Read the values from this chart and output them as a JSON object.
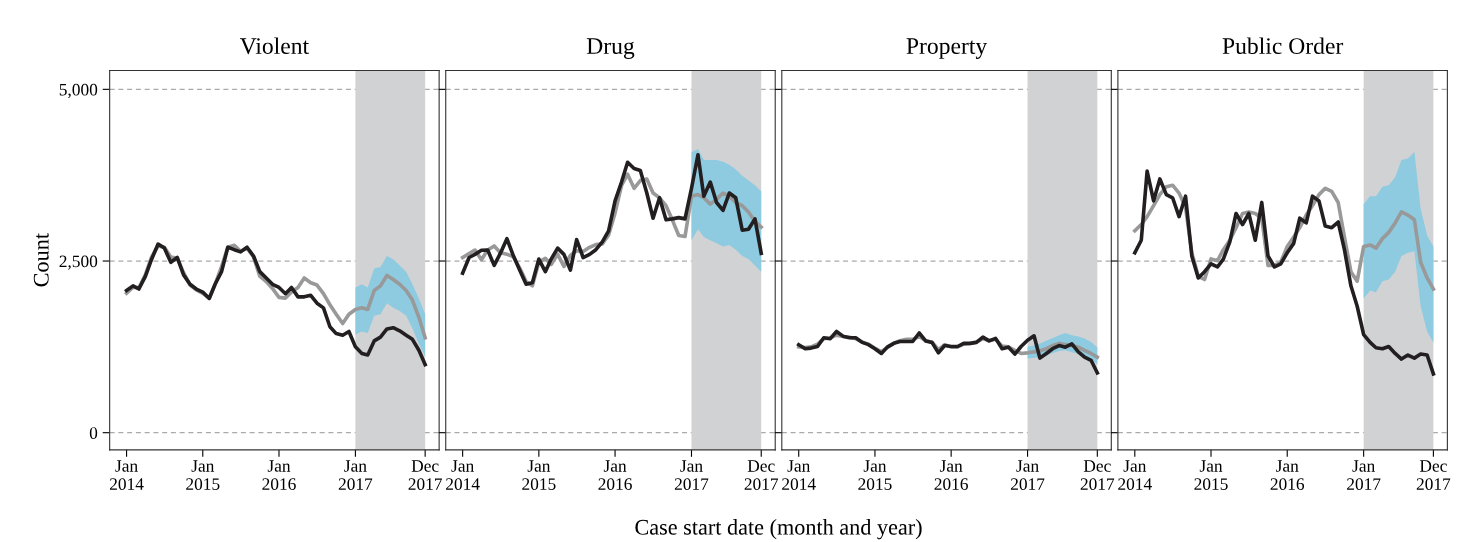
{
  "chart_data": [
    {
      "type": "line",
      "title": "Violent",
      "ylabel": "Count",
      "annotations": [
        "Case start date (month and year)"
      ],
      "x": [
        "2014-01",
        "2014-02",
        "2014-03",
        "2014-04",
        "2014-05",
        "2014-06",
        "2014-07",
        "2014-08",
        "2014-09",
        "2014-10",
        "2014-11",
        "2014-12",
        "2015-01",
        "2015-02",
        "2015-03",
        "2015-04",
        "2015-05",
        "2015-06",
        "2015-07",
        "2015-08",
        "2015-09",
        "2015-10",
        "2015-11",
        "2015-12",
        "2016-01",
        "2016-02",
        "2016-03",
        "2016-04",
        "2016-05",
        "2016-06",
        "2016-07",
        "2016-08",
        "2016-09",
        "2016-10",
        "2016-11",
        "2016-12",
        "2017-01",
        "2017-02",
        "2017-03",
        "2017-04",
        "2017-05",
        "2017-06",
        "2017-07",
        "2017-08",
        "2017-09",
        "2017-10",
        "2017-11",
        "2017-12"
      ],
      "series": [
        {
          "color": "#999999",
          "values": [
            2030,
            2120,
            2110,
            2300,
            2560,
            2720,
            2700,
            2560,
            2540,
            2330,
            2150,
            2080,
            2030,
            1960,
            2160,
            2420,
            2700,
            2730,
            2640,
            2690,
            2560,
            2280,
            2200,
            2100,
            1970,
            1960,
            2050,
            2115,
            2253,
            2184,
            2150,
            2024,
            1863,
            1726,
            1589,
            1726,
            1795,
            1818,
            1795,
            2070,
            2138,
            2290,
            2230,
            2161,
            2070,
            1932,
            1680,
            1383
          ],
          "lower": [
            null,
            null,
            null,
            null,
            null,
            null,
            null,
            null,
            null,
            null,
            null,
            null,
            null,
            null,
            null,
            null,
            null,
            null,
            null,
            null,
            null,
            null,
            null,
            null,
            null,
            null,
            null,
            null,
            null,
            null,
            null,
            null,
            null,
            null,
            null,
            null,
            1429,
            1474,
            1451,
            1703,
            1726,
            1886,
            1818,
            1772,
            1703,
            1521,
            1291,
            1108
          ],
          "upper": [
            null,
            null,
            null,
            null,
            null,
            null,
            null,
            null,
            null,
            null,
            null,
            null,
            null,
            null,
            null,
            null,
            null,
            null,
            null,
            null,
            null,
            null,
            null,
            null,
            null,
            null,
            null,
            null,
            null,
            null,
            null,
            null,
            null,
            null,
            null,
            null,
            2115,
            2161,
            2115,
            2390,
            2413,
            2573,
            2527,
            2436,
            2345,
            2161,
            1955,
            1726
          ]
        },
        {
          "color": "#231f20",
          "values": [
            2070,
            2138,
            2092,
            2276,
            2527,
            2747,
            2688,
            2482,
            2551,
            2298,
            2161,
            2092,
            2047,
            1955,
            2161,
            2345,
            2701,
            2665,
            2633,
            2701,
            2573,
            2345,
            2253,
            2161,
            2115,
            2024,
            2115,
            1978,
            1978,
            2001,
            1886,
            1818,
            1543,
            1443,
            1420,
            1474,
            1250,
            1154,
            1131,
            1337,
            1392,
            1511,
            1529,
            1484,
            1420,
            1360,
            1200,
            993
          ]
        }
      ],
      "bands": [
        {
          "axis": "x",
          "from": "2017-01",
          "to": "2017-12",
          "color": "#d1d2d4"
        }
      ],
      "xlim": [
        "2013-10-12",
        "2018-02-06"
      ],
      "xticks": [
        {
          "value": "2014-01",
          "label": "Jan\n2014"
        },
        {
          "value": "2015-01",
          "label": "Jan\n2015"
        },
        {
          "value": "2016-01",
          "label": "Jan\n2016"
        },
        {
          "value": "2017-01",
          "label": "Jan\n2017"
        },
        {
          "value": "2017-12",
          "label": "Dec\n2017"
        }
      ],
      "ylim": [
        -250,
        5275
      ],
      "yticks": [
        0,
        {
          "value": 2500,
          "label": "2,500"
        },
        {
          "value": 5000,
          "label": "5,000"
        }
      ],
      "grid": "y",
      "line_style": "solid",
      "marker": "none"
    },
    {
      "type": "line",
      "title": "Drug",
      "x": [
        "2014-01",
        "2014-02",
        "2014-03",
        "2014-04",
        "2014-05",
        "2014-06",
        "2014-07",
        "2014-08",
        "2014-09",
        "2014-10",
        "2014-11",
        "2014-12",
        "2015-01",
        "2015-02",
        "2015-03",
        "2015-04",
        "2015-05",
        "2015-06",
        "2015-07",
        "2015-08",
        "2015-09",
        "2015-10",
        "2015-11",
        "2015-12",
        "2016-01",
        "2016-02",
        "2016-03",
        "2016-04",
        "2016-05",
        "2016-06",
        "2016-07",
        "2016-08",
        "2016-09",
        "2016-10",
        "2016-11",
        "2016-12",
        "2017-01",
        "2017-02",
        "2017-03",
        "2017-04",
        "2017-05",
        "2017-06",
        "2017-07",
        "2017-08",
        "2017-09",
        "2017-10",
        "2017-11",
        "2017-12"
      ],
      "series": [
        {
          "color": "#999999",
          "values": [
            2550,
            2610,
            2660,
            2520,
            2660,
            2720,
            2620,
            2600,
            2560,
            2400,
            2200,
            2140,
            2480,
            2540,
            2450,
            2600,
            2420,
            2580,
            2650,
            2640,
            2700,
            2740,
            2750,
            2880,
            3200,
            3600,
            3764,
            3558,
            3672,
            3695,
            3490,
            3421,
            3306,
            3100,
            2871,
            2857,
            3444,
            3467,
            3421,
            3329,
            3398,
            3490,
            3444,
            3352,
            3306,
            3215,
            3077,
            2995
          ],
          "lower": [
            null,
            null,
            null,
            null,
            null,
            null,
            null,
            null,
            null,
            null,
            null,
            null,
            null,
            null,
            null,
            null,
            null,
            null,
            null,
            null,
            null,
            null,
            null,
            null,
            null,
            null,
            null,
            null,
            null,
            null,
            null,
            null,
            null,
            null,
            null,
            null,
            2803,
            2963,
            2849,
            2803,
            2757,
            2711,
            2734,
            2665,
            2574,
            2528,
            2436,
            2345
          ],
          "upper": [
            null,
            null,
            null,
            null,
            null,
            null,
            null,
            null,
            null,
            null,
            null,
            null,
            null,
            null,
            null,
            null,
            null,
            null,
            null,
            null,
            null,
            null,
            null,
            null,
            null,
            null,
            null,
            null,
            null,
            null,
            null,
            null,
            null,
            null,
            null,
            null,
            4085,
            4131,
            3970,
            3970,
            3970,
            3947,
            3901,
            3833,
            3741,
            3672,
            3604,
            3512
          ]
        },
        {
          "color": "#231f20",
          "values": [
            2322,
            2551,
            2597,
            2656,
            2660,
            2436,
            2614,
            2825,
            2576,
            2368,
            2162,
            2185,
            2528,
            2345,
            2528,
            2688,
            2597,
            2368,
            2812,
            2551,
            2597,
            2665,
            2780,
            2940,
            3375,
            3650,
            3938,
            3847,
            3819,
            3490,
            3123,
            3421,
            3100,
            3114,
            3132,
            3114,
            3558,
            4048,
            3444,
            3650,
            3352,
            3238,
            3490,
            3421,
            2949,
            2963,
            3114,
            2611
          ]
        }
      ],
      "bands": [
        {
          "axis": "x",
          "from": "2017-01",
          "to": "2017-12",
          "color": "#d1d2d4"
        }
      ],
      "xlim": [
        "2013-10-12",
        "2018-02-06"
      ],
      "xticks": [
        {
          "value": "2014-01",
          "label": "Jan\n2014"
        },
        {
          "value": "2015-01",
          "label": "Jan\n2015"
        },
        {
          "value": "2016-01",
          "label": "Jan\n2016"
        },
        {
          "value": "2017-01",
          "label": "Jan\n2017"
        },
        {
          "value": "2017-12",
          "label": "Dec\n2017"
        }
      ],
      "ylim": [
        -250,
        5275
      ],
      "yticks": [
        0,
        2500,
        5000
      ],
      "tick_labels": "x",
      "grid": "y",
      "line_style": "solid",
      "marker": "none"
    },
    {
      "type": "line",
      "title": "Property",
      "x": [
        "2014-01",
        "2014-02",
        "2014-03",
        "2014-04",
        "2014-05",
        "2014-06",
        "2014-07",
        "2014-08",
        "2014-09",
        "2014-10",
        "2014-11",
        "2014-12",
        "2015-01",
        "2015-02",
        "2015-03",
        "2015-04",
        "2015-05",
        "2015-06",
        "2015-07",
        "2015-08",
        "2015-09",
        "2015-10",
        "2015-11",
        "2015-12",
        "2016-01",
        "2016-02",
        "2016-03",
        "2016-04",
        "2016-05",
        "2016-06",
        "2016-07",
        "2016-08",
        "2016-09",
        "2016-10",
        "2016-11",
        "2016-12",
        "2017-01",
        "2017-02",
        "2017-03",
        "2017-04",
        "2017-05",
        "2017-06",
        "2017-07",
        "2017-08",
        "2017-09",
        "2017-10",
        "2017-11",
        "2017-12"
      ],
      "series": [
        {
          "color": "#999999",
          "values": [
            1250,
            1240,
            1250,
            1290,
            1370,
            1380,
            1420,
            1400,
            1390,
            1370,
            1320,
            1290,
            1230,
            1180,
            1240,
            1300,
            1340,
            1360,
            1360,
            1400,
            1340,
            1320,
            1210,
            1280,
            1250,
            1250,
            1290,
            1300,
            1320,
            1370,
            1340,
            1360,
            1260,
            1250,
            1200,
            1154,
            1163,
            1177,
            1191,
            1223,
            1269,
            1301,
            1282,
            1269,
            1246,
            1200,
            1154,
            1099
          ],
          "lower": [
            null,
            null,
            null,
            null,
            null,
            null,
            null,
            null,
            null,
            null,
            null,
            null,
            null,
            null,
            null,
            null,
            null,
            null,
            null,
            null,
            null,
            null,
            null,
            null,
            null,
            null,
            null,
            null,
            null,
            null,
            null,
            null,
            null,
            null,
            null,
            null,
            1080,
            1090,
            1100,
            1120,
            1160,
            1190,
            1200,
            1170,
            1150,
            1110,
            1060,
            1000
          ],
          "upper": [
            null,
            null,
            null,
            null,
            null,
            null,
            null,
            null,
            null,
            null,
            null,
            null,
            null,
            null,
            null,
            null,
            null,
            null,
            null,
            null,
            null,
            null,
            null,
            null,
            null,
            null,
            null,
            null,
            null,
            null,
            null,
            null,
            null,
            null,
            null,
            null,
            1250,
            1270,
            1300,
            1340,
            1380,
            1420,
            1450,
            1420,
            1400,
            1370,
            1320,
            1240
          ]
        },
        {
          "color": "#231f20",
          "values": [
            1282,
            1223,
            1232,
            1255,
            1383,
            1369,
            1474,
            1406,
            1383,
            1383,
            1315,
            1282,
            1223,
            1154,
            1246,
            1301,
            1328,
            1328,
            1328,
            1452,
            1337,
            1315,
            1163,
            1269,
            1255,
            1255,
            1301,
            1301,
            1315,
            1392,
            1337,
            1374,
            1223,
            1246,
            1145,
            1255,
            1346,
            1411,
            1086,
            1154,
            1223,
            1269,
            1246,
            1292,
            1177,
            1099,
            1054,
            870
          ]
        }
      ],
      "bands": [
        {
          "axis": "x",
          "from": "2017-01",
          "to": "2017-12",
          "color": "#d1d2d4"
        }
      ],
      "xlim": [
        "2013-10-12",
        "2018-02-06"
      ],
      "xticks": [
        {
          "value": "2014-01",
          "label": "Jan\n2014"
        },
        {
          "value": "2015-01",
          "label": "Jan\n2015"
        },
        {
          "value": "2016-01",
          "label": "Jan\n2016"
        },
        {
          "value": "2017-01",
          "label": "Jan\n2017"
        },
        {
          "value": "2017-12",
          "label": "Dec\n2017"
        }
      ],
      "ylim": [
        -250,
        5275
      ],
      "yticks": [
        0,
        2500,
        5000
      ],
      "tick_labels": "x",
      "grid": "y",
      "line_style": "solid",
      "marker": "none"
    },
    {
      "type": "line",
      "title": "Public Order",
      "x": [
        "2014-01",
        "2014-02",
        "2014-03",
        "2014-04",
        "2014-05",
        "2014-06",
        "2014-07",
        "2014-08",
        "2014-09",
        "2014-10",
        "2014-11",
        "2014-12",
        "2015-01",
        "2015-02",
        "2015-03",
        "2015-04",
        "2015-05",
        "2015-06",
        "2015-07",
        "2015-08",
        "2015-09",
        "2015-10",
        "2015-11",
        "2015-12",
        "2016-01",
        "2016-02",
        "2016-03",
        "2016-04",
        "2016-05",
        "2016-06",
        "2016-07",
        "2016-08",
        "2016-09",
        "2016-10",
        "2016-11",
        "2016-12",
        "2017-01",
        "2017-02",
        "2017-03",
        "2017-04",
        "2017-05",
        "2017-06",
        "2017-07",
        "2017-08",
        "2017-09",
        "2017-10",
        "2017-11",
        "2017-12"
      ],
      "series": [
        {
          "color": "#999999",
          "values": [
            2940,
            3032,
            3147,
            3307,
            3467,
            3582,
            3604,
            3490,
            3284,
            2620,
            2277,
            2231,
            2530,
            2505,
            2665,
            2803,
            2986,
            3192,
            3215,
            3192,
            3124,
            2436,
            2436,
            2482,
            2711,
            2849,
            2986,
            3169,
            3307,
            3467,
            3558,
            3513,
            3352,
            2849,
            2345,
            2207,
            2711,
            2734,
            2688,
            2826,
            2917,
            3055,
            3215,
            3169,
            3101,
            2482,
            2253,
            2093
          ],
          "lower": [
            null,
            null,
            null,
            null,
            null,
            null,
            null,
            null,
            null,
            null,
            null,
            null,
            null,
            null,
            null,
            null,
            null,
            null,
            null,
            null,
            null,
            null,
            null,
            null,
            null,
            null,
            null,
            null,
            null,
            null,
            null,
            null,
            null,
            null,
            null,
            null,
            1955,
            2070,
            2047,
            2207,
            2231,
            2345,
            2574,
            2620,
            2642,
            1841,
            1475,
            1314
          ],
          "upper": [
            null,
            null,
            null,
            null,
            null,
            null,
            null,
            null,
            null,
            null,
            null,
            null,
            null,
            null,
            null,
            null,
            null,
            null,
            null,
            null,
            null,
            null,
            null,
            null,
            null,
            null,
            null,
            null,
            null,
            null,
            null,
            null,
            null,
            null,
            null,
            null,
            3330,
            3444,
            3444,
            3582,
            3604,
            3719,
            3971,
            3994,
            4086,
            3261,
            2871,
            2711
          ]
        },
        {
          "color": "#231f20",
          "values": [
            2620,
            2803,
            3810,
            3376,
            3696,
            3467,
            3421,
            3147,
            3444,
            2574,
            2253,
            2345,
            2459,
            2413,
            2528,
            2780,
            3192,
            3032,
            3192,
            2803,
            3353,
            2574,
            2413,
            2459,
            2620,
            2757,
            3124,
            3055,
            3444,
            3376,
            3009,
            2986,
            3068,
            2665,
            2139,
            1841,
            1429,
            1314,
            1237,
            1223,
            1255,
            1154,
            1072,
            1131,
            1086,
            1145,
            1131,
            856
          ]
        }
      ],
      "bands": [
        {
          "axis": "x",
          "from": "2017-01",
          "to": "2017-12",
          "color": "#d1d2d4"
        }
      ],
      "xlim": [
        "2013-10-12",
        "2018-02-06"
      ],
      "xticks": [
        {
          "value": "2014-01",
          "label": "Jan\n2014"
        },
        {
          "value": "2015-01",
          "label": "Jan\n2015"
        },
        {
          "value": "2016-01",
          "label": "Jan\n2016"
        },
        {
          "value": "2017-01",
          "label": "Jan\n2017"
        },
        {
          "value": "2017-12",
          "label": "Dec\n2017"
        }
      ],
      "ylim": [
        -250,
        5275
      ],
      "yticks": [
        0,
        2500,
        5000
      ],
      "tick_labels": "x",
      "grid": "y",
      "line_style": "solid",
      "marker": "none"
    }
  ]
}
